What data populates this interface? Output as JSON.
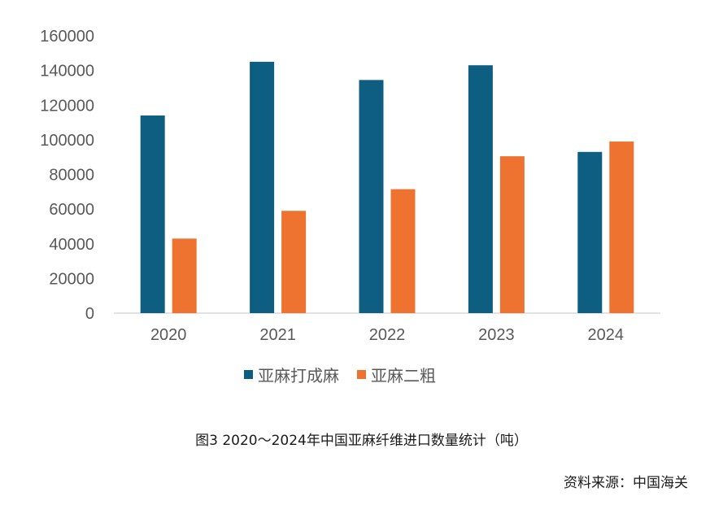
{
  "chart_data": {
    "type": "bar",
    "categories": [
      "2020",
      "2021",
      "2022",
      "2023",
      "2024"
    ],
    "series": [
      {
        "name": "亚麻打成麻",
        "color": "#0e5e82",
        "values": [
          114000,
          145000,
          134500,
          143000,
          93000
        ]
      },
      {
        "name": "亚麻二粗",
        "color": "#ee7330",
        "values": [
          43000,
          59000,
          71500,
          90500,
          99000
        ]
      }
    ],
    "ylim": [
      0,
      160000
    ],
    "yticks": [
      "0",
      "20000",
      "40000",
      "60000",
      "80000",
      "100000",
      "120000",
      "140000",
      "160000"
    ],
    "grid": false,
    "legend_position": "bottom"
  },
  "caption": "图3   2020～2024年中国亚麻纤维进口数量统计（吨）",
  "source": "资料来源：中国海关"
}
